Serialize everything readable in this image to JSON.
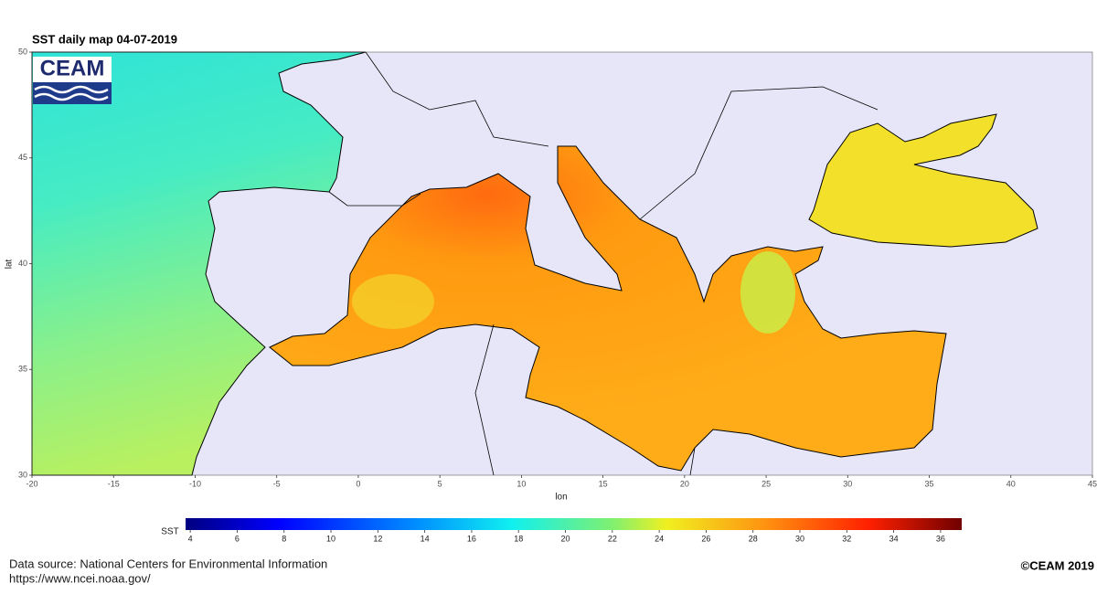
{
  "title": "SST daily map 04-07-2019",
  "logo": "CEAM",
  "map": {
    "xlabel": "lon",
    "ylabel": "lat",
    "xlim": [
      -20,
      45
    ],
    "ylim": [
      30,
      50
    ],
    "xticks": [
      -20,
      -15,
      -10,
      -5,
      0,
      5,
      10,
      15,
      20,
      25,
      30,
      35,
      40,
      45
    ],
    "yticks": [
      30,
      35,
      40,
      45,
      50
    ]
  },
  "colorbar": {
    "label": "SST",
    "lim": [
      3.8,
      36.9
    ],
    "ticks": [
      4,
      6,
      8,
      10,
      12,
      14,
      16,
      18,
      20,
      22,
      24,
      26,
      28,
      30,
      32,
      34,
      36
    ]
  },
  "footer": {
    "source": "Data source: National Centers for Environmental Information",
    "url": "https://www.ncei.noaa.gov/",
    "copyright": "©CEAM 2019"
  }
}
